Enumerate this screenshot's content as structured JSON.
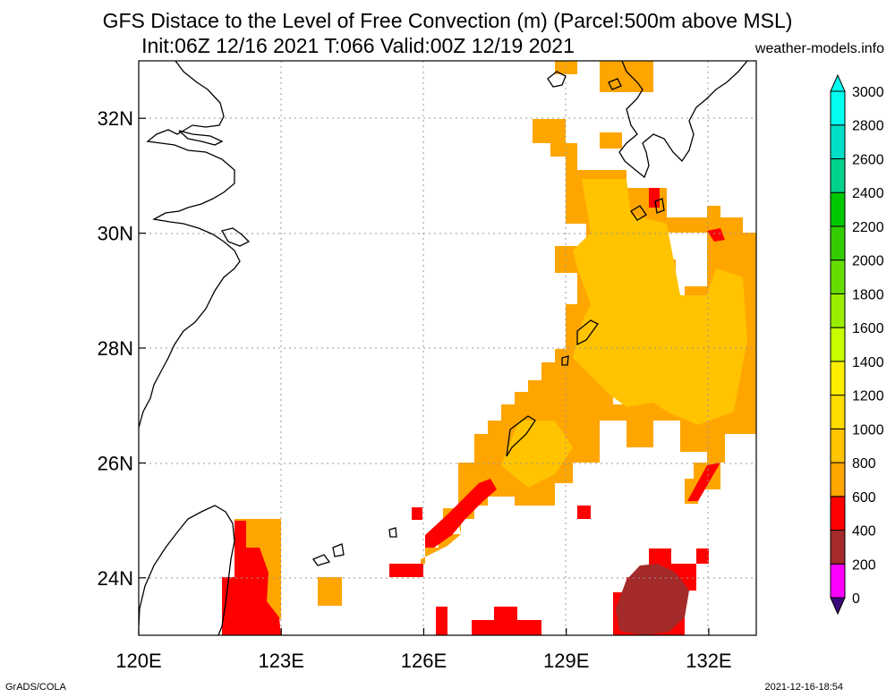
{
  "title_line1": "GFS Distace to the Level of Free Convection (m) (Parcel:500m above MSL)",
  "title_line2": "Init:06Z 12/16 2021 T:066 Valid:00Z 12/19 2021",
  "credit": "weather-models.info",
  "footer_left": "GrADS/COLA",
  "footer_right": "2021-12-16-18:54",
  "map": {
    "lon_range": [
      120,
      133
    ],
    "lat_range": [
      23,
      33
    ],
    "lon_ticks": [
      {
        "value": 120,
        "label": "120E"
      },
      {
        "value": 123,
        "label": "123E"
      },
      {
        "value": 126,
        "label": "126E"
      },
      {
        "value": 129,
        "label": "129E"
      },
      {
        "value": 132,
        "label": "132E"
      }
    ],
    "lat_ticks": [
      {
        "value": 24,
        "label": "24N"
      },
      {
        "value": 26,
        "label": "26N"
      },
      {
        "value": 28,
        "label": "28N"
      },
      {
        "value": 30,
        "label": "30N"
      },
      {
        "value": 32,
        "label": "32N"
      }
    ],
    "grid": true
  },
  "colorbar": {
    "levels": [
      "0",
      "200",
      "400",
      "600",
      "800",
      "1000",
      "1200",
      "1400",
      "1600",
      "1800",
      "2000",
      "2200",
      "2400",
      "2600",
      "2800",
      "3000"
    ],
    "colors": [
      "#3b0a7a",
      "#ff00ff",
      "#a52a2a",
      "#ff0000",
      "#ffa500",
      "#ffc300",
      "#ffdd00",
      "#ffee00",
      "#c8ff00",
      "#99ee00",
      "#66dd00",
      "#33cc00",
      "#00c800",
      "#00d28c",
      "#00e0c8",
      "#00ffee"
    ],
    "low_color": "#3b0a7a",
    "high_color": "#00ffee"
  },
  "field_colors": {
    "orange": "#ffa500",
    "amber": "#ffc300",
    "red": "#ff0000",
    "brown": "#a52a2a"
  }
}
